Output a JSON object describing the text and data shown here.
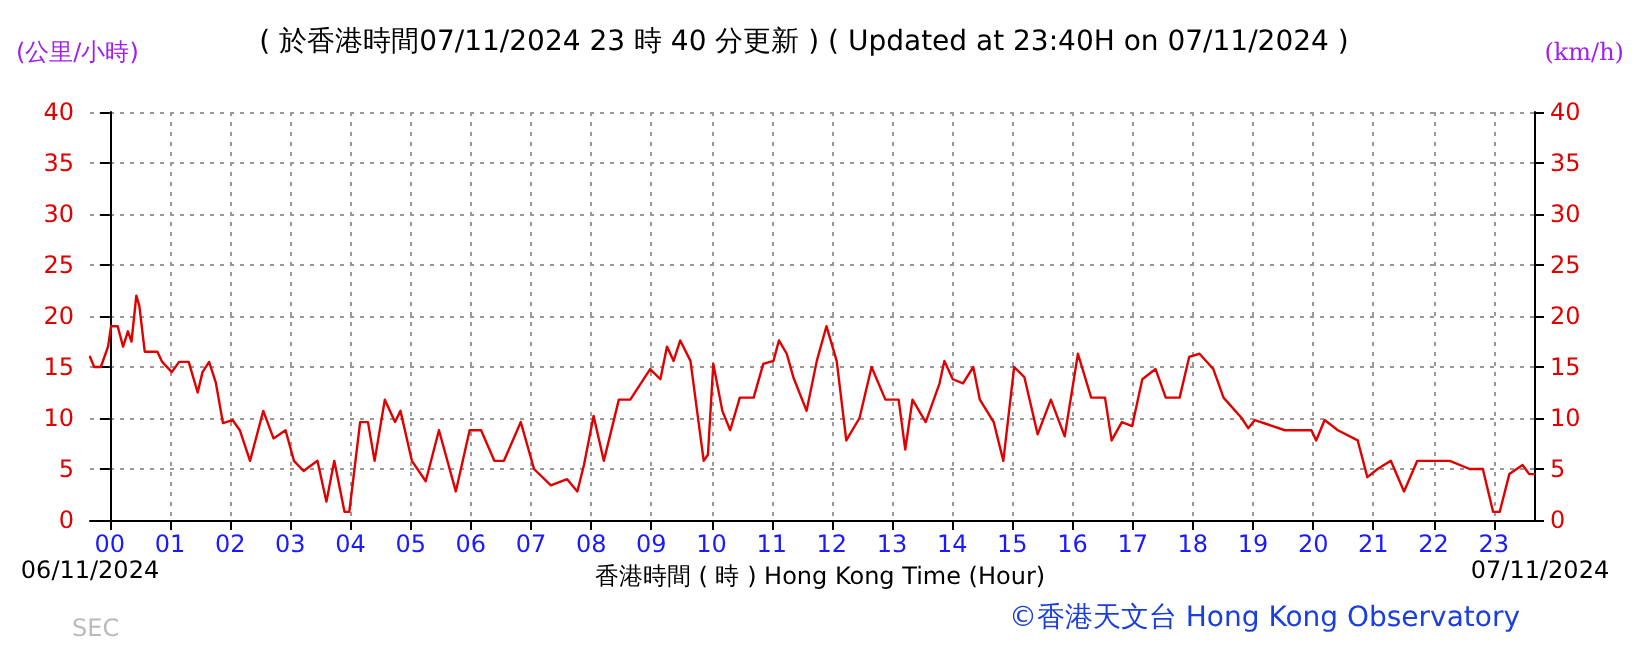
{
  "chart_data": {
    "type": "line",
    "title": "( 於香港時間07/11/2024 23 時 40 分更新 ) ( Updated at 23:40H on 07/11/2024 )",
    "xlabel": "香港時間 ( 時 ) Hong Kong Time (Hour)",
    "ylabel": "(公里/小時)",
    "y2label": "(km/h)",
    "annotations": [
      "06/11/2024",
      "07/11/2024",
      "SEC",
      "©香港天文台 Hong Kong Observatory"
    ],
    "series": [
      {
        "color": "#e00000",
        "x": [
          -0.33,
          -0.26,
          -0.15,
          -0.03,
          0.02,
          0.13,
          0.22,
          0.3,
          0.36,
          0.44,
          0.49,
          0.58,
          0.7,
          0.79,
          0.87,
          1.03,
          1.15,
          1.31,
          1.46,
          1.54,
          1.65,
          1.76,
          1.88,
          2.04,
          2.16,
          2.33,
          2.55,
          2.72,
          2.92,
          3.06,
          3.22,
          3.45,
          3.6,
          3.73,
          3.9,
          3.98,
          4.16,
          4.29,
          4.4,
          4.57,
          4.74,
          4.83,
          5.02,
          5.25,
          5.47,
          5.75,
          5.98,
          6.17,
          6.39,
          6.55,
          6.83,
          7.05,
          7.33,
          7.6,
          7.77,
          7.88,
          8.04,
          8.21,
          8.46,
          8.65,
          8.98,
          9.15,
          9.26,
          9.37,
          9.48,
          9.65,
          9.87,
          9.94,
          10.03,
          10.18,
          10.31,
          10.47,
          10.7,
          10.86,
          11.03,
          11.12,
          11.25,
          11.36,
          11.58,
          11.75,
          11.91,
          12.08,
          12.24,
          12.46,
          12.66,
          12.89,
          13.11,
          13.22,
          13.34,
          13.56,
          13.79,
          13.87,
          14.01,
          14.18,
          14.35,
          14.46,
          14.69,
          14.85,
          15.03,
          15.2,
          15.42,
          15.64,
          15.87,
          16.09,
          16.31,
          16.54,
          16.65,
          16.82,
          16.99,
          17.16,
          17.38,
          17.55,
          17.78,
          17.94,
          18.11,
          18.34,
          18.51,
          18.81,
          18.92,
          19.03,
          19.53,
          19.97,
          20.05,
          20.19,
          20.41,
          20.74,
          20.9,
          21.07,
          21.29,
          21.51,
          21.73,
          22.27,
          22.6,
          22.82,
          22.99,
          23.1,
          23.26,
          23.48,
          23.59,
          23.67
        ],
        "values": [
          16,
          15,
          15,
          17,
          19,
          19,
          17,
          18.5,
          17.5,
          22,
          21,
          16.5,
          16.5,
          16.5,
          15.5,
          14.5,
          15.5,
          15.5,
          12.5,
          14.5,
          15.5,
          13.5,
          9.5,
          9.8,
          8.8,
          5.8,
          10.7,
          8,
          8.8,
          5.8,
          4.8,
          5.8,
          1.8,
          5.8,
          0.8,
          0.8,
          9.6,
          9.6,
          5.8,
          11.8,
          9.6,
          10.7,
          5.8,
          3.8,
          8.8,
          2.8,
          8.8,
          8.8,
          5.8,
          5.8,
          9.6,
          5,
          3.4,
          4,
          2.8,
          5.4,
          10.2,
          5.8,
          11.8,
          11.8,
          14.8,
          13.8,
          17,
          15.6,
          17.6,
          15.6,
          5.8,
          6.4,
          15.3,
          10.7,
          8.8,
          12,
          12,
          15.3,
          15.6,
          17.6,
          16.3,
          14,
          10.7,
          15.6,
          19,
          15.6,
          7.8,
          10,
          15,
          11.8,
          11.8,
          6.9,
          11.8,
          9.6,
          13.4,
          15.6,
          13.8,
          13.4,
          15,
          11.8,
          9.6,
          5.8,
          15,
          14,
          8.4,
          11.8,
          8.2,
          16.3,
          12,
          12,
          7.8,
          9.6,
          9.2,
          13.8,
          14.8,
          12,
          12,
          16,
          16.3,
          14.8,
          12,
          10,
          9,
          9.8,
          8.8,
          8.8,
          7.8,
          9.8,
          8.8,
          7.8,
          4.2,
          5,
          5.8,
          2.8,
          5.8,
          5.8,
          5,
          5,
          0.8,
          0.8,
          4.5,
          5.4,
          4.5,
          4.5
        ]
      }
    ],
    "xlim": [
      -0.33,
      23.67
    ],
    "xticks": [
      {
        "value": 0,
        "label": "00"
      },
      {
        "value": 1,
        "label": "01"
      },
      {
        "value": 2,
        "label": "02"
      },
      {
        "value": 3,
        "label": "03"
      },
      {
        "value": 4,
        "label": "04"
      },
      {
        "value": 5,
        "label": "05"
      },
      {
        "value": 6,
        "label": "06"
      },
      {
        "value": 7,
        "label": "07"
      },
      {
        "value": 8,
        "label": "08"
      },
      {
        "value": 9,
        "label": "09"
      },
      {
        "value": 10,
        "label": "10"
      },
      {
        "value": 11,
        "label": "11"
      },
      {
        "value": 12,
        "label": "12"
      },
      {
        "value": 13,
        "label": "13"
      },
      {
        "value": 14,
        "label": "14"
      },
      {
        "value": 15,
        "label": "15"
      },
      {
        "value": 16,
        "label": "16"
      },
      {
        "value": 17,
        "label": "17"
      },
      {
        "value": 18,
        "label": "18"
      },
      {
        "value": 19,
        "label": "19"
      },
      {
        "value": 20,
        "label": "20"
      },
      {
        "value": 21,
        "label": "21"
      },
      {
        "value": 22,
        "label": "22"
      },
      {
        "value": 23,
        "label": "23"
      }
    ],
    "ylim": [
      0,
      40
    ],
    "yticks": [
      0,
      5,
      10,
      15,
      20,
      25,
      30,
      35,
      40
    ],
    "y2lim": [
      0,
      40
    ],
    "y2ticks": [
      0,
      5,
      10,
      15,
      20,
      25,
      30,
      35,
      40
    ],
    "grid": true,
    "marker": "none",
    "line_style": "solid"
  }
}
